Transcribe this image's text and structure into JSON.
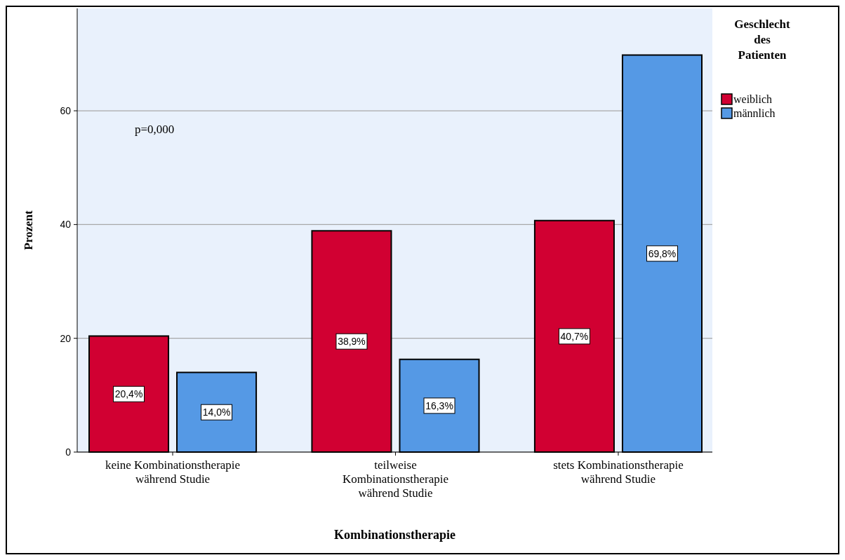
{
  "chart_data": {
    "type": "bar",
    "xlabel": "Kombinationstherapie",
    "ylabel": "Prozent",
    "legend_title": "Geschlecht des Patienten",
    "categories": [
      "keine Kombinationstherapie während Studie",
      "teilweise Kombinationstherapie während Studie",
      "stets Kombinationstherapie während Studie"
    ],
    "series": [
      {
        "name": "weiblich",
        "color": "#d10032",
        "values": [
          20.4,
          38.9,
          40.7
        ],
        "value_labels": [
          "20,4%",
          "38,9%",
          "40,7%"
        ]
      },
      {
        "name": "männlich",
        "color": "#5599e5",
        "values": [
          14.0,
          16.3,
          69.8
        ],
        "value_labels": [
          "14,0%",
          "16,3%",
          "69,8%"
        ]
      }
    ],
    "ylim": [
      0,
      78
    ],
    "yticks": [
      0,
      20,
      40,
      60
    ],
    "grid": "y",
    "legend": "top right",
    "annotations": [
      "p=0,000"
    ]
  }
}
